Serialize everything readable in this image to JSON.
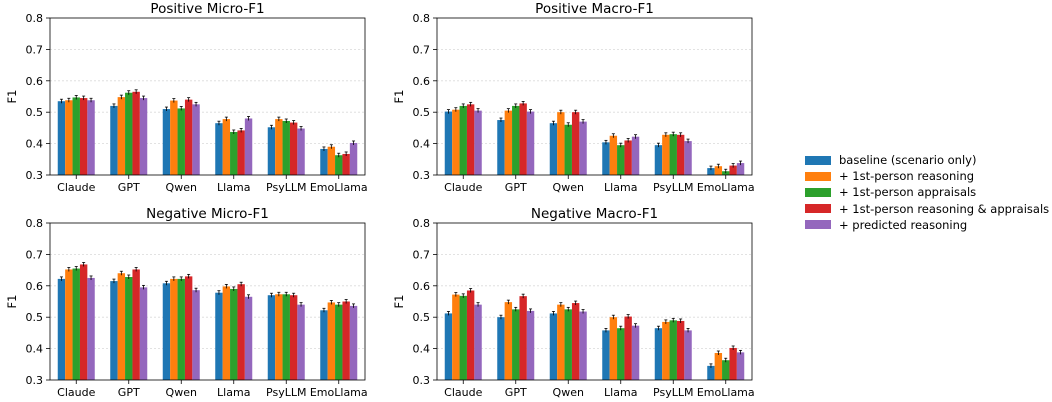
{
  "chart_data": [
    {
      "type": "bar",
      "title": "Positive Micro-F1",
      "ylabel": "F1",
      "ylim": [
        0.3,
        0.8
      ],
      "yticks": [
        "0.3",
        "0.4",
        "0.5",
        "0.6",
        "0.7",
        "0.8"
      ],
      "grid": "horizontal dotted",
      "categories": [
        "Claude",
        "GPT",
        "Qwen",
        "Llama",
        "PsyLLM",
        "EmoLlama"
      ],
      "series": [
        {
          "name": "baseline (scenario only)",
          "values": [
            0.535,
            0.52,
            0.51,
            0.465,
            0.452,
            0.383
          ]
        },
        {
          "name": "+ 1st-person reasoning",
          "values": [
            0.538,
            0.548,
            0.537,
            0.478,
            0.478,
            0.39
          ]
        },
        {
          "name": "+ 1st-person appraisals",
          "values": [
            0.547,
            0.562,
            0.512,
            0.437,
            0.472,
            0.363
          ]
        },
        {
          "name": "+ 1st-person reasoning & appraisals",
          "values": [
            0.545,
            0.565,
            0.54,
            0.442,
            0.467,
            0.367
          ]
        },
        {
          "name": "+ predicted reasoning",
          "values": [
            0.538,
            0.545,
            0.525,
            0.48,
            0.448,
            0.402
          ]
        }
      ]
    },
    {
      "type": "bar",
      "title": "Positive Macro-F1",
      "ylabel": "F1",
      "ylim": [
        0.3,
        0.8
      ],
      "yticks": [
        "0.3",
        "0.4",
        "0.5",
        "0.6",
        "0.7",
        "0.8"
      ],
      "grid": "horizontal dotted",
      "categories": [
        "Claude",
        "GPT",
        "Qwen",
        "Llama",
        "PsyLLM",
        "EmoLlama"
      ],
      "series": [
        {
          "name": "baseline (scenario only)",
          "values": [
            0.502,
            0.475,
            0.465,
            0.404,
            0.395,
            0.322
          ]
        },
        {
          "name": "+ 1st-person reasoning",
          "values": [
            0.508,
            0.505,
            0.5,
            0.425,
            0.428,
            0.328
          ]
        },
        {
          "name": "+ 1st-person appraisals",
          "values": [
            0.52,
            0.52,
            0.46,
            0.395,
            0.43,
            0.312
          ]
        },
        {
          "name": "+ 1st-person reasoning & appraisals",
          "values": [
            0.525,
            0.528,
            0.5,
            0.41,
            0.428,
            0.33
          ]
        },
        {
          "name": "+ predicted reasoning",
          "values": [
            0.505,
            0.502,
            0.47,
            0.422,
            0.408,
            0.338
          ]
        }
      ]
    },
    {
      "type": "bar",
      "title": "Negative Micro-F1",
      "ylabel": "F1",
      "ylim": [
        0.3,
        0.8
      ],
      "yticks": [
        "0.3",
        "0.4",
        "0.5",
        "0.6",
        "0.7",
        "0.8"
      ],
      "grid": "horizontal dotted",
      "categories": [
        "Claude",
        "GPT",
        "Qwen",
        "Llama",
        "PsyLLM",
        "EmoLlama"
      ],
      "series": [
        {
          "name": "baseline (scenario only)",
          "values": [
            0.622,
            0.615,
            0.608,
            0.578,
            0.57,
            0.522
          ]
        },
        {
          "name": "+ 1st-person reasoning",
          "values": [
            0.652,
            0.64,
            0.622,
            0.598,
            0.573,
            0.547
          ]
        },
        {
          "name": "+ 1st-person appraisals",
          "values": [
            0.655,
            0.628,
            0.622,
            0.59,
            0.573,
            0.54
          ]
        },
        {
          "name": "+ 1st-person reasoning & appraisals",
          "values": [
            0.668,
            0.652,
            0.63,
            0.605,
            0.57,
            0.55
          ]
        },
        {
          "name": "+ predicted reasoning",
          "values": [
            0.625,
            0.595,
            0.586,
            0.565,
            0.54,
            0.536
          ]
        }
      ]
    },
    {
      "type": "bar",
      "title": "Negative Macro-F1",
      "ylabel": "F1",
      "ylim": [
        0.3,
        0.8
      ],
      "yticks": [
        "0.3",
        "0.4",
        "0.5",
        "0.6",
        "0.7",
        "0.8"
      ],
      "grid": "horizontal dotted",
      "categories": [
        "Claude",
        "GPT",
        "Qwen",
        "Llama",
        "PsyLLM",
        "EmoLlama"
      ],
      "series": [
        {
          "name": "baseline (scenario only)",
          "values": [
            0.512,
            0.5,
            0.512,
            0.458,
            0.465,
            0.345
          ]
        },
        {
          "name": "+ 1st-person reasoning",
          "values": [
            0.572,
            0.548,
            0.54,
            0.5,
            0.485,
            0.386
          ]
        },
        {
          "name": "+ 1st-person appraisals",
          "values": [
            0.568,
            0.525,
            0.525,
            0.465,
            0.49,
            0.363
          ]
        },
        {
          "name": "+ 1st-person reasoning & appraisals",
          "values": [
            0.585,
            0.567,
            0.545,
            0.502,
            0.488,
            0.402
          ]
        },
        {
          "name": "+ predicted reasoning",
          "values": [
            0.54,
            0.52,
            0.518,
            0.473,
            0.458,
            0.388
          ]
        }
      ]
    }
  ],
  "legend": {
    "placement": "right",
    "items": [
      {
        "label": "baseline (scenario only)",
        "color": "#1f77b4"
      },
      {
        "label": "+ 1st-person reasoning",
        "color": "#ff7f0e"
      },
      {
        "label": "+ 1st-person appraisals",
        "color": "#2ca02c"
      },
      {
        "label": "+ 1st-person reasoning & appraisals",
        "color": "#d62728"
      },
      {
        "label": "+ predicted reasoning",
        "color": "#9467bd"
      }
    ]
  }
}
